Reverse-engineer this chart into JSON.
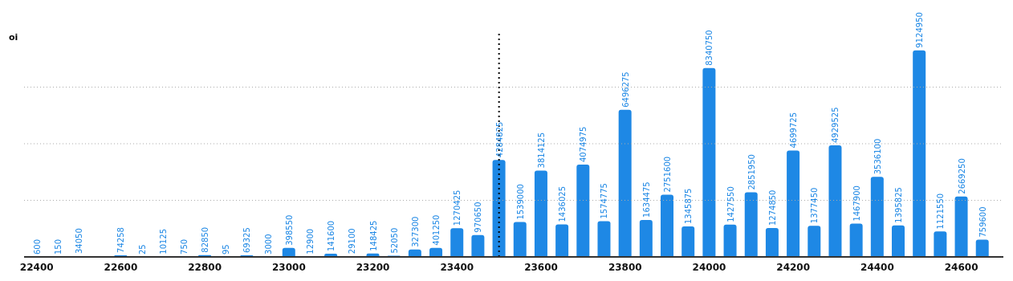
{
  "chart_data": {
    "type": "bar",
    "ylabel": "oi",
    "x": [
      22400,
      22450,
      22500,
      22550,
      22600,
      22650,
      22700,
      22750,
      22800,
      22850,
      22900,
      22950,
      23000,
      23050,
      23100,
      23150,
      23200,
      23250,
      23300,
      23350,
      23400,
      23450,
      23500,
      23550,
      23600,
      23650,
      23700,
      23750,
      23800,
      23850,
      23900,
      23950,
      24000,
      24050,
      24100,
      24150,
      24200,
      24250,
      24300,
      24350,
      24400,
      24450,
      24500,
      24550,
      24600,
      24650
    ],
    "series": [
      {
        "color": "#1e88e5",
        "values": [
          600,
          150,
          34050,
          null,
          74258,
          25,
          10125,
          750,
          82850,
          95,
          69325,
          3000,
          398550,
          12900,
          141600,
          29100,
          148425,
          52050,
          327300,
          401250,
          1270425,
          970650,
          4284825,
          1539000,
          3814125,
          1436025,
          4074975,
          1574775,
          6496275,
          1634475,
          2751600,
          1345875,
          8340750,
          1427550,
          2851950,
          1274850,
          4699725,
          1377450,
          4929525,
          1467900,
          3536100,
          1395825,
          9124950,
          1121550,
          2669250,
          759600
        ]
      }
    ],
    "xlim": [
      22370,
      24700
    ],
    "xticks": [
      22400,
      22600,
      22800,
      23000,
      23200,
      23400,
      23600,
      23800,
      24000,
      24200,
      24400,
      24600
    ],
    "ylim": [
      0,
      10000000
    ],
    "yticks": [
      {
        "value": 2500000,
        "label": null
      },
      {
        "value": 5000000,
        "label": null
      },
      {
        "value": 7500000,
        "label": null
      }
    ],
    "tick_labels": "x",
    "grid": "y",
    "data_labels": true,
    "ref_lines": [
      {
        "axis": "x",
        "value": 23500,
        "color": "#000000",
        "line_style": "dotted"
      }
    ]
  }
}
